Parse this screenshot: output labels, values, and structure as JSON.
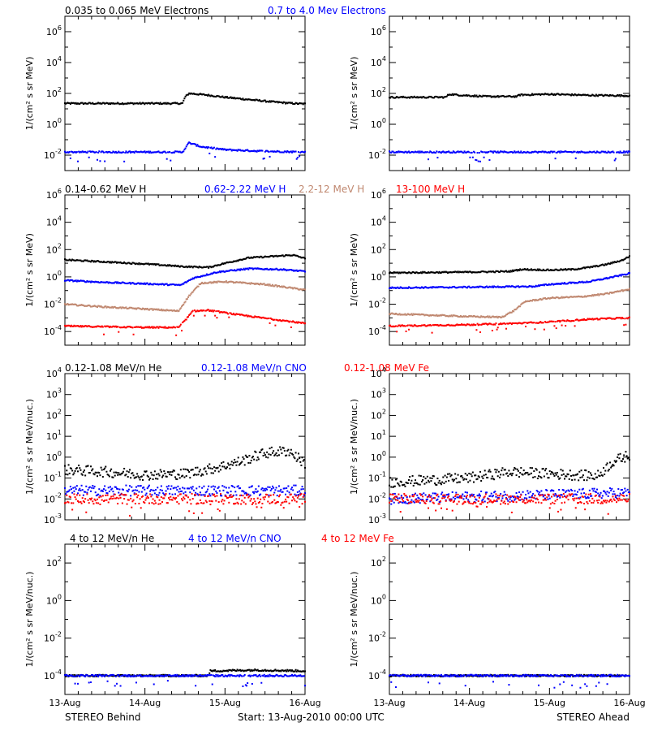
{
  "footer": {
    "left": "STEREO Behind",
    "center": "Start: 13-Aug-2010 00:00 UTC",
    "right": "STEREO Ahead"
  },
  "colors": {
    "black": "#000000",
    "blue": "#0000ff",
    "tan": "#c08870",
    "red": "#ff0000"
  },
  "chart_data": [
    {
      "type": "scatter",
      "panel": "electrons",
      "x_ticks": [
        "13-Aug",
        "14-Aug",
        "15-Aug",
        "16-Aug"
      ],
      "xlim": [
        "13-Aug-2010 00:00",
        "16-Aug-2010 00:00"
      ],
      "y_scale": "log",
      "ylim_exp": [
        -3,
        7
      ],
      "y_tick_exps": [
        -2,
        0,
        2,
        4,
        6
      ],
      "ylabel": "1/(cm² s sr MeV)",
      "legend": [
        {
          "label": "0.035 to 0.065 MeV Electrons",
          "color": "#000000"
        },
        {
          "label": "0.7 to 4.0 Mev Electrons",
          "color": "#0000ff"
        }
      ],
      "behind": [
        {
          "color": "#000000",
          "log10_points": [
            [
              0,
              1.35
            ],
            [
              0.5,
              1.35
            ],
            [
              1.0,
              1.35
            ],
            [
              1.47,
              1.35
            ],
            [
              1.5,
              1.75
            ],
            [
              1.55,
              2.0
            ],
            [
              1.6,
              1.98
            ],
            [
              1.8,
              1.88
            ],
            [
              2.0,
              1.75
            ],
            [
              2.3,
              1.6
            ],
            [
              2.6,
              1.45
            ],
            [
              2.85,
              1.35
            ],
            [
              3.0,
              1.32
            ]
          ]
        },
        {
          "color": "#0000ff",
          "log10_points": [
            [
              0,
              -1.8
            ],
            [
              1.0,
              -1.8
            ],
            [
              1.47,
              -1.8
            ],
            [
              1.55,
              -1.2
            ],
            [
              1.7,
              -1.45
            ],
            [
              2.0,
              -1.65
            ],
            [
              2.5,
              -1.75
            ],
            [
              3.0,
              -1.8
            ]
          ]
        }
      ],
      "ahead": [
        {
          "color": "#000000",
          "log10_points": [
            [
              0,
              1.75
            ],
            [
              0.7,
              1.75
            ],
            [
              0.75,
              1.95
            ],
            [
              0.85,
              1.9
            ],
            [
              1.2,
              1.8
            ],
            [
              1.6,
              1.8
            ],
            [
              1.62,
              1.9
            ],
            [
              2.0,
              1.95
            ],
            [
              2.5,
              1.88
            ],
            [
              3.0,
              1.85
            ]
          ]
        },
        {
          "color": "#0000ff",
          "log10_points": [
            [
              0,
              -1.8
            ],
            [
              3.0,
              -1.8
            ]
          ]
        }
      ]
    },
    {
      "type": "scatter",
      "panel": "protons",
      "x_ticks": [
        "13-Aug",
        "14-Aug",
        "15-Aug",
        "16-Aug"
      ],
      "xlim": [
        "13-Aug-2010 00:00",
        "16-Aug-2010 00:00"
      ],
      "y_scale": "log",
      "ylim_exp": [
        -5,
        6
      ],
      "y_tick_exps": [
        -4,
        -2,
        0,
        2,
        4,
        6
      ],
      "ylabel": "1/(cm² s sr MeV)",
      "legend": [
        {
          "label": "0.14-0.62 MeV H",
          "color": "#000000"
        },
        {
          "label": "0.62-2.22 MeV H",
          "color": "#0000ff"
        },
        {
          "label": "2.2-12 MeV H",
          "color": "#c08870"
        },
        {
          "label": "13-100 MeV H",
          "color": "#ff0000"
        }
      ],
      "behind": [
        {
          "color": "#000000",
          "log10_points": [
            [
              0,
              1.25
            ],
            [
              0.5,
              1.1
            ],
            [
              1.0,
              0.95
            ],
            [
              1.5,
              0.75
            ],
            [
              1.8,
              0.7
            ],
            [
              2.0,
              1.0
            ],
            [
              2.3,
              1.4
            ],
            [
              2.6,
              1.5
            ],
            [
              2.85,
              1.6
            ],
            [
              3.0,
              1.35
            ]
          ]
        },
        {
          "color": "#0000ff",
          "log10_points": [
            [
              0,
              -0.25
            ],
            [
              0.5,
              -0.4
            ],
            [
              1.0,
              -0.5
            ],
            [
              1.45,
              -0.6
            ],
            [
              1.6,
              -0.1
            ],
            [
              1.9,
              0.35
            ],
            [
              2.3,
              0.6
            ],
            [
              2.7,
              0.55
            ],
            [
              3.0,
              0.4
            ]
          ]
        },
        {
          "color": "#c08870",
          "log10_points": [
            [
              0,
              -2.0
            ],
            [
              0.5,
              -2.2
            ],
            [
              1.0,
              -2.35
            ],
            [
              1.42,
              -2.5
            ],
            [
              1.55,
              -1.4
            ],
            [
              1.7,
              -0.45
            ],
            [
              2.0,
              -0.35
            ],
            [
              2.5,
              -0.55
            ],
            [
              3.0,
              -0.95
            ]
          ]
        },
        {
          "color": "#ff0000",
          "log10_points": [
            [
              0,
              -3.6
            ],
            [
              1.0,
              -3.7
            ],
            [
              1.42,
              -3.7
            ],
            [
              1.5,
              -3.2
            ],
            [
              1.6,
              -2.5
            ],
            [
              1.8,
              -2.45
            ],
            [
              2.2,
              -2.8
            ],
            [
              2.6,
              -3.1
            ],
            [
              3.0,
              -3.4
            ]
          ]
        }
      ],
      "ahead": [
        {
          "color": "#000000",
          "log10_points": [
            [
              0,
              0.3
            ],
            [
              1.0,
              0.35
            ],
            [
              1.5,
              0.4
            ],
            [
              1.65,
              0.55
            ],
            [
              2.0,
              0.5
            ],
            [
              2.3,
              0.55
            ],
            [
              2.5,
              0.7
            ],
            [
              2.7,
              0.9
            ],
            [
              2.9,
              1.2
            ],
            [
              3.0,
              1.5
            ]
          ]
        },
        {
          "color": "#0000ff",
          "log10_points": [
            [
              0,
              -0.8
            ],
            [
              1.0,
              -0.75
            ],
            [
              1.8,
              -0.7
            ],
            [
              2.0,
              -0.55
            ],
            [
              2.5,
              -0.35
            ],
            [
              2.8,
              0.0
            ],
            [
              3.0,
              0.25
            ]
          ]
        },
        {
          "color": "#c08870",
          "log10_points": [
            [
              0,
              -2.7
            ],
            [
              0.5,
              -2.8
            ],
            [
              1.0,
              -2.9
            ],
            [
              1.4,
              -2.95
            ],
            [
              1.55,
              -2.5
            ],
            [
              1.7,
              -1.8
            ],
            [
              2.0,
              -1.55
            ],
            [
              2.4,
              -1.45
            ],
            [
              2.7,
              -1.25
            ],
            [
              3.0,
              -0.9
            ]
          ]
        },
        {
          "color": "#ff0000",
          "log10_points": [
            [
              0,
              -3.6
            ],
            [
              1.0,
              -3.5
            ],
            [
              1.6,
              -3.4
            ],
            [
              2.0,
              -3.3
            ],
            [
              2.5,
              -3.1
            ],
            [
              3.0,
              -3.0
            ]
          ]
        }
      ]
    },
    {
      "type": "scatter",
      "panel": "heavy-low",
      "x_ticks": [
        "13-Aug",
        "14-Aug",
        "15-Aug",
        "16-Aug"
      ],
      "xlim": [
        "13-Aug-2010 00:00",
        "16-Aug-2010 00:00"
      ],
      "y_scale": "log",
      "ylim_exp": [
        -3,
        4
      ],
      "y_tick_exps": [
        -3,
        -2,
        -1,
        0,
        1,
        2,
        3,
        4
      ],
      "ylabel": "1/(cm² s sr MeV/nuc.)",
      "legend": [
        {
          "label": "0.12-1.08 MeV/n He",
          "color": "#000000"
        },
        {
          "label": "0.12-1.08 MeV/n CNO",
          "color": "#0000ff"
        },
        {
          "label": "0.12-1.08 MeV Fe",
          "color": "#ff0000"
        }
      ],
      "behind": [
        {
          "color": "#000000",
          "log10_points": [
            [
              0,
              -0.6
            ],
            [
              0.5,
              -0.7
            ],
            [
              1.0,
              -0.85
            ],
            [
              1.5,
              -0.8
            ],
            [
              1.9,
              -0.5
            ],
            [
              2.2,
              -0.2
            ],
            [
              2.5,
              0.2
            ],
            [
              2.8,
              0.3
            ],
            [
              3.0,
              -0.3
            ]
          ]
        },
        {
          "color": "#0000ff",
          "log10_points": [
            [
              0,
              -1.6
            ],
            [
              3.0,
              -1.6
            ]
          ]
        },
        {
          "color": "#ff0000",
          "log10_points": [
            [
              0,
              -2.0
            ],
            [
              3.0,
              -2.0
            ]
          ]
        }
      ],
      "ahead": [
        {
          "color": "#000000",
          "log10_points": [
            [
              0,
              -1.2
            ],
            [
              1.0,
              -1.0
            ],
            [
              1.5,
              -0.7
            ],
            [
              2.0,
              -0.8
            ],
            [
              2.6,
              -0.9
            ],
            [
              2.8,
              -0.2
            ],
            [
              3.0,
              0.1
            ]
          ]
        },
        {
          "color": "#0000ff",
          "log10_points": [
            [
              0,
              -2.0
            ],
            [
              3.0,
              -1.7
            ]
          ]
        },
        {
          "color": "#ff0000",
          "log10_points": [
            [
              0,
              -2.0
            ],
            [
              3.0,
              -2.0
            ]
          ]
        }
      ]
    },
    {
      "type": "scatter",
      "panel": "heavy-high",
      "x_ticks": [
        "13-Aug",
        "14-Aug",
        "15-Aug",
        "16-Aug"
      ],
      "xlim": [
        "13-Aug-2010 00:00",
        "16-Aug-2010 00:00"
      ],
      "y_scale": "log",
      "ylim_exp": [
        -5,
        3
      ],
      "y_tick_exps": [
        -4,
        -2,
        0,
        2
      ],
      "ylabel": "1/(cm² s sr MeV/nuc.)",
      "legend": [
        {
          "label": "4 to 12 MeV/n He",
          "color": "#000000"
        },
        {
          "label": "4 to 12 MeV/n CNO",
          "color": "#0000ff"
        },
        {
          "label": "4 to 12 MeV Fe",
          "color": "#ff0000"
        }
      ],
      "behind": [
        {
          "color": "#000000",
          "log10_points": [
            [
              0,
              -4.0
            ],
            [
              1.8,
              -4.0
            ],
            [
              1.81,
              -3.75
            ],
            [
              2.4,
              -3.7
            ],
            [
              3.0,
              -3.75
            ]
          ]
        },
        {
          "color": "#0000ff",
          "log10_points": [
            [
              0,
              -4.0
            ],
            [
              3.0,
              -4.0
            ]
          ]
        }
      ],
      "ahead": [
        {
          "color": "#000000",
          "log10_points": [
            [
              0,
              -4.0
            ],
            [
              3.0,
              -4.0
            ]
          ]
        },
        {
          "color": "#0000ff",
          "log10_points": [
            [
              0,
              -4.0
            ],
            [
              3.0,
              -4.0
            ]
          ]
        }
      ]
    }
  ]
}
